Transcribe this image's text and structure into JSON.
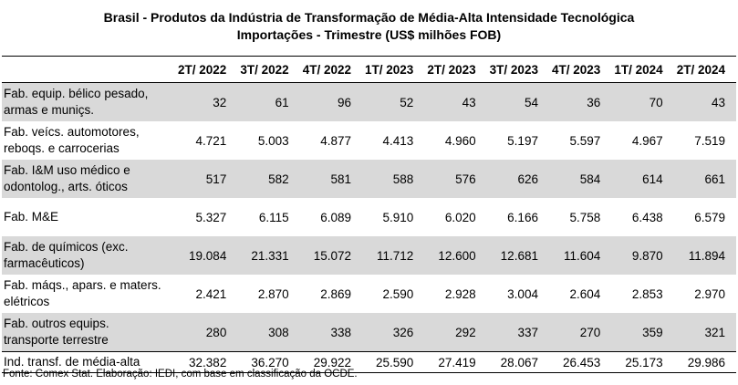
{
  "chart_data": {
    "type": "table",
    "title": "Brasil - Produtos da Indústria de Transformação de Média-Alta Intensidade Tecnológica",
    "subtitle": "Importações - Trimestre (US$ milhões FOB)",
    "columns": [
      "2T/ 2022",
      "3T/ 2022",
      "4T/ 2022",
      "1T/ 2023",
      "2T/ 2023",
      "3T/ 2023",
      "4T/ 2023",
      "1T/ 2024",
      "2T/ 2024"
    ],
    "rows": [
      {
        "label": "Fab. equip. bélico pesado, armas e munições.",
        "label_lines": [
          "Fab. equip. bélico pesado,",
          "armas e muniçs."
        ],
        "values": [
          "32",
          "61",
          "96",
          "52",
          "43",
          "54",
          "36",
          "70",
          "43"
        ]
      },
      {
        "label": "Fab. veícs. automotores, reboqs. e carrocerias",
        "label_lines": [
          "Fab. veícs. automotores,",
          "reboqs. e carrocerias"
        ],
        "values": [
          "4.721",
          "5.003",
          "4.877",
          "4.413",
          "4.960",
          "5.197",
          "5.597",
          "4.967",
          "7.519"
        ]
      },
      {
        "label": "Fab. I&M uso médico e odontológ., arts. óticos",
        "label_lines": [
          "Fab. I&M uso médico e",
          "odontolog., arts. óticos"
        ],
        "values": [
          "517",
          "582",
          "581",
          "588",
          "576",
          "626",
          "584",
          "614",
          "661"
        ]
      },
      {
        "label": "Fab. M&E",
        "label_lines": [
          "Fab. M&E"
        ],
        "values": [
          "5.327",
          "6.115",
          "6.089",
          "5.910",
          "6.020",
          "6.166",
          "5.758",
          "6.438",
          "6.579"
        ]
      },
      {
        "label": "Fab. de químicos (exc. farmacêuticos)",
        "label_lines": [
          "Fab. de químicos (exc.",
          "farmacêuticos)"
        ],
        "values": [
          "19.084",
          "21.331",
          "15.072",
          "11.712",
          "12.600",
          "12.681",
          "11.604",
          "9.870",
          "11.894"
        ]
      },
      {
        "label": "Fab. máqs., apars. e maters. elétricos",
        "label_lines": [
          "Fab. máqs., apars. e maters.",
          "elétricos"
        ],
        "values": [
          "2.421",
          "2.870",
          "2.869",
          "2.590",
          "2.928",
          "3.004",
          "2.604",
          "2.853",
          "2.970"
        ]
      },
      {
        "label": "Fab. outros equips. transporte terrestre",
        "label_lines": [
          "Fab. outros equips.",
          "transporte terrestre"
        ],
        "values": [
          "280",
          "308",
          "338",
          "326",
          "292",
          "337",
          "270",
          "359",
          "321"
        ]
      }
    ],
    "total": {
      "label": "Ind. transf. de média-alta",
      "values": [
        "32.382",
        "36.270",
        "29.922",
        "25.590",
        "27.419",
        "28.067",
        "26.453",
        "25.173",
        "29.986"
      ]
    },
    "source": "Fonte: Comex Stat. Elaboração: IEDI, com base em classificação da OCDE."
  }
}
